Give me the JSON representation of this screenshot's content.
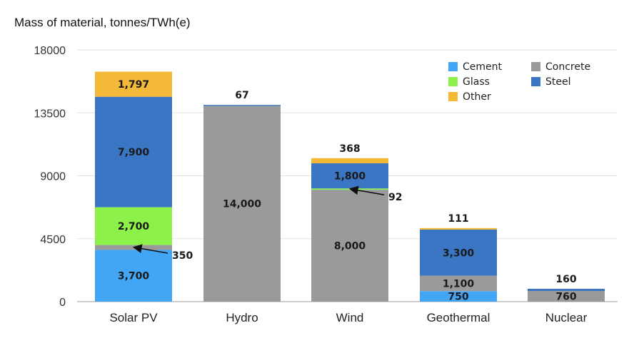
{
  "chart_data": {
    "type": "bar",
    "stacked": true,
    "title": "Mass of material, tonnes/TWh(e)",
    "categories": [
      "Solar PV",
      "Hydro",
      "Wind",
      "Geothermal",
      "Nuclear"
    ],
    "ylim": [
      0,
      18000
    ],
    "yticks": [
      "0",
      "4500",
      "9000",
      "13500",
      "18000"
    ],
    "grid": true,
    "legend_position": "top-right",
    "series": [
      {
        "name": "Cement",
        "color": "#42a5f5",
        "values": [
          3700,
          0,
          0,
          750,
          0
        ]
      },
      {
        "name": "Concrete",
        "color": "#9a9a9a",
        "values": [
          350,
          14000,
          8000,
          1100,
          760
        ]
      },
      {
        "name": "Glass",
        "color": "#8cf24a",
        "values": [
          2700,
          0,
          92,
          0,
          0
        ]
      },
      {
        "name": "Steel",
        "color": "#3a76c4",
        "values": [
          7900,
          67,
          1800,
          3300,
          160
        ]
      },
      {
        "name": "Other",
        "color": "#f5b93a",
        "values": [
          1797,
          0,
          368,
          111,
          0
        ]
      }
    ],
    "legend_order": [
      "Cement",
      "Concrete",
      "Glass",
      "Steel",
      "Other"
    ],
    "segment_labels": [
      [
        "3,700",
        "",
        "2,700",
        "7,900",
        "1,797"
      ],
      [
        "",
        "14,000",
        "",
        "",
        ""
      ],
      [
        "",
        "8,000",
        "",
        "1,800",
        ""
      ],
      [
        "750",
        "1,100",
        "",
        "3,300",
        ""
      ],
      [
        "",
        "760",
        "",
        "",
        ""
      ]
    ],
    "top_labels": [
      "",
      "67",
      "368",
      "111",
      "160"
    ],
    "callouts": [
      {
        "category": "Solar PV",
        "label": "350"
      },
      {
        "category": "Wind",
        "label": "92"
      }
    ]
  }
}
